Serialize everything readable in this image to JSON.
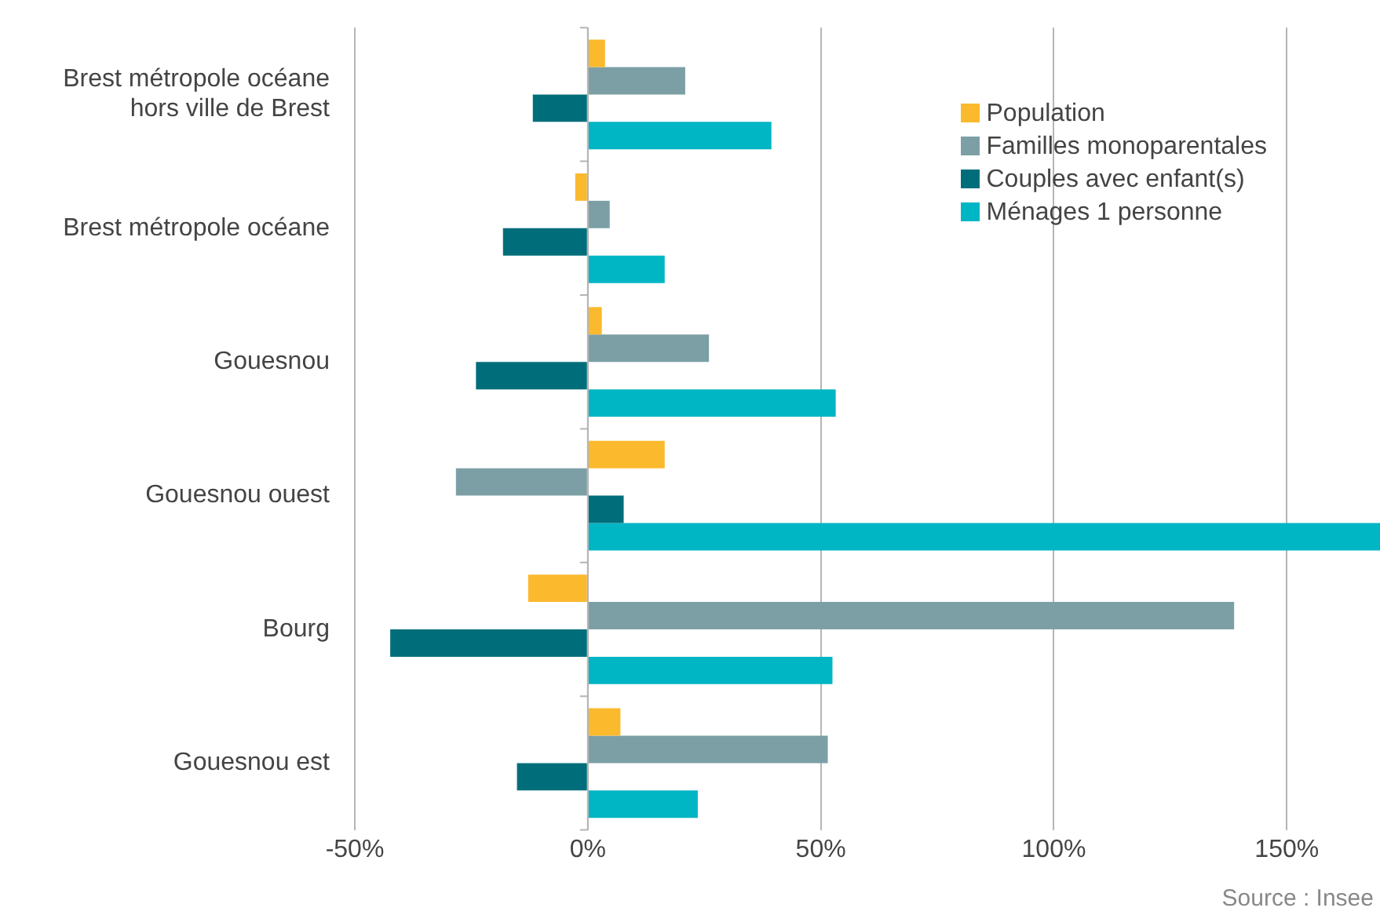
{
  "chart_data": {
    "type": "bar",
    "orientation": "horizontal",
    "categories": [
      "Brest métropole océane\nhors ville de Brest",
      "Brest métropole océane",
      "Gouesnou",
      "Gouesnou ouest",
      "Bourg",
      "Gouesnou est"
    ],
    "series": [
      {
        "name": "Population",
        "color": "#fbb92d",
        "values": [
          3.7,
          -2.7,
          3,
          16.5,
          -12.8,
          7
        ]
      },
      {
        "name": "Familles monoparentales",
        "color": "#7c9fa6",
        "values": [
          20.9,
          4.7,
          26,
          -28.3,
          138.7,
          51.5
        ]
      },
      {
        "name": "Couples avec enfant(s)",
        "color": "#006e7a",
        "values": [
          -11.8,
          -18.2,
          -24,
          7.7,
          -42.4,
          -15.2
        ]
      },
      {
        "name": "Ménages 1 personne",
        "color": "#00b5c4",
        "values": [
          39.4,
          16.5,
          53.2,
          170,
          52.5,
          23.6
        ]
      }
    ],
    "xlim": [
      -50,
      170
    ],
    "xticks": [
      {
        "value": -50,
        "label": "-50%"
      },
      {
        "value": 0,
        "label": "0%"
      },
      {
        "value": 50,
        "label": "50%"
      },
      {
        "value": 100,
        "label": "100%"
      },
      {
        "value": 150,
        "label": "150%"
      }
    ],
    "grid": "x",
    "legend": "top right",
    "annotations": [
      "Source : Insee"
    ]
  }
}
